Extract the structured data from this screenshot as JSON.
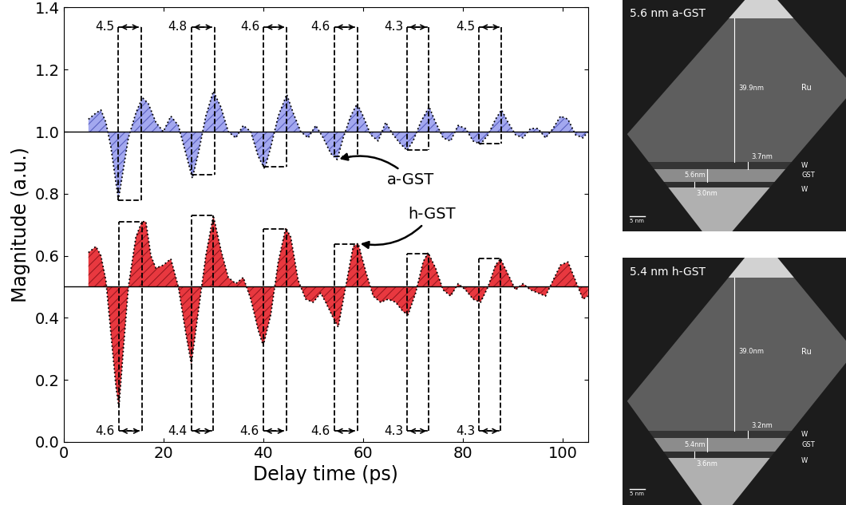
{
  "chart_data": {
    "type": "area",
    "x_label": "Delay time (ps)",
    "y_label": "Magnitude (a.u.)",
    "xlim": [
      0,
      105
    ],
    "xticks": [
      0,
      20,
      40,
      60,
      80,
      100
    ],
    "ylim": [
      0,
      1.4
    ],
    "yticks": [
      {
        "value": 0,
        "label": "0.0"
      },
      {
        "value": 0.2,
        "label": "0.2"
      },
      {
        "value": 0.4,
        "label": "0.4"
      },
      {
        "value": 0.6,
        "label": "0.6"
      },
      {
        "value": 0.8,
        "label": "0.8"
      },
      {
        "value": 1.0,
        "label": "1.0"
      },
      {
        "value": 1.2,
        "label": "1.2"
      },
      {
        "value": 1.4,
        "label": "1.4"
      }
    ],
    "line_style": "dotted",
    "series": [
      {
        "name": "a-GST",
        "color": "#a3a8ef",
        "baseline": 1.0,
        "x": [
          5,
          6.5,
          7.5,
          8.5,
          9.5,
          11,
          12,
          13,
          14.5,
          15.8,
          17,
          18.5,
          20,
          21.5,
          23,
          24.5,
          25.8,
          27,
          28.5,
          30,
          31.5,
          33,
          34.5,
          36,
          37.5,
          39,
          40.3,
          41.5,
          43,
          44.7,
          46,
          47.5,
          49,
          50.5,
          52,
          53.5,
          54.8,
          56,
          57.5,
          58.8,
          60,
          61.5,
          63,
          64.5,
          66,
          67.5,
          68.8,
          70,
          71.5,
          73.2,
          74.5,
          76,
          77.5,
          79,
          80.5,
          82,
          83.5,
          85,
          86.5,
          87.7,
          89,
          90.5,
          92,
          93.5,
          95,
          96.5,
          98,
          99.5,
          101,
          102.5,
          104,
          105
        ],
        "values": [
          1.04,
          1.06,
          1.07,
          1.03,
          0.95,
          0.78,
          0.88,
          0.98,
          1.06,
          1.11,
          1.09,
          1.03,
          1.0,
          1.05,
          1.02,
          0.93,
          0.85,
          0.93,
          1.05,
          1.13,
          1.08,
          1.0,
          0.98,
          1.02,
          1.0,
          0.92,
          0.88,
          0.95,
          1.05,
          1.12,
          1.06,
          1.0,
          0.98,
          1.02,
          0.98,
          0.93,
          0.91,
          0.98,
          1.05,
          1.09,
          1.05,
          0.99,
          0.97,
          1.03,
          0.99,
          0.96,
          0.94,
          0.97,
          1.03,
          1.08,
          1.03,
          0.98,
          0.97,
          1.02,
          1.01,
          0.97,
          0.96,
          0.99,
          1.04,
          1.07,
          1.03,
          0.99,
          0.98,
          1.01,
          1.01,
          0.98,
          1.01,
          1.05,
          1.04,
          0.99,
          0.98,
          1.0
        ],
        "periods": [
          {
            "start": 11,
            "end": 15.5,
            "value": 4.5
          },
          {
            "start": 25.6,
            "end": 30.2,
            "value": 4.8
          },
          {
            "start": 40.1,
            "end": 44.7,
            "value": 4.6
          },
          {
            "start": 54.2,
            "end": 58.8,
            "value": 4.6
          },
          {
            "start": 68.8,
            "end": 73.1,
            "value": 4.3
          },
          {
            "start": 83.2,
            "end": 87.7,
            "value": 4.5
          }
        ]
      },
      {
        "name": "h-GST",
        "color": "#e8383f",
        "baseline": 0.5,
        "x": [
          5,
          6.5,
          7.5,
          8.5,
          9.5,
          10.5,
          11.1,
          12,
          13,
          14.5,
          15.7,
          16.5,
          17.5,
          18.5,
          20,
          21.5,
          23,
          24.5,
          25.6,
          27,
          28.5,
          30,
          31.5,
          33,
          34.5,
          36,
          37.5,
          39,
          40,
          41.5,
          43,
          44.5,
          45.5,
          47,
          48.5,
          50,
          51.5,
          52.5,
          54,
          55,
          56.5,
          58,
          59,
          60.5,
          62,
          63.5,
          65,
          66.5,
          68,
          69,
          70.5,
          72,
          73,
          74.5,
          76,
          77.5,
          79,
          80.5,
          82,
          83.5,
          85,
          86.5,
          87.5,
          89,
          90.5,
          92,
          93.5,
          95,
          96.5,
          98,
          99.5,
          101,
          102.5,
          104,
          105
        ],
        "values": [
          0.61,
          0.63,
          0.6,
          0.52,
          0.35,
          0.18,
          0.11,
          0.3,
          0.5,
          0.66,
          0.71,
          0.71,
          0.6,
          0.56,
          0.57,
          0.59,
          0.5,
          0.35,
          0.25,
          0.42,
          0.6,
          0.73,
          0.62,
          0.53,
          0.51,
          0.53,
          0.46,
          0.36,
          0.31,
          0.41,
          0.58,
          0.69,
          0.66,
          0.52,
          0.46,
          0.45,
          0.48,
          0.45,
          0.4,
          0.37,
          0.5,
          0.63,
          0.64,
          0.55,
          0.47,
          0.45,
          0.46,
          0.45,
          0.42,
          0.41,
          0.48,
          0.58,
          0.61,
          0.56,
          0.49,
          0.47,
          0.51,
          0.49,
          0.46,
          0.45,
          0.5,
          0.57,
          0.59,
          0.54,
          0.49,
          0.51,
          0.49,
          0.48,
          0.47,
          0.52,
          0.57,
          0.58,
          0.52,
          0.46,
          0.47
        ],
        "periods": [
          {
            "start": 11.1,
            "end": 15.7,
            "value": 4.6
          },
          {
            "start": 25.6,
            "end": 30,
            "value": 4.4
          },
          {
            "start": 40,
            "end": 44.6,
            "value": 4.6
          },
          {
            "start": 54.2,
            "end": 58.8,
            "value": 4.6
          },
          {
            "start": 68.8,
            "end": 73.1,
            "value": 4.3
          },
          {
            "start": 83.2,
            "end": 87.5,
            "value": 4.3
          }
        ]
      }
    ]
  },
  "images": [
    {
      "title": "5.6 nm a-GST",
      "scale_bar": "5 nm",
      "layers": [
        {
          "name": "Ru",
          "thickness": "39.9nm"
        },
        {
          "name": "W",
          "thickness": "3.7nm"
        },
        {
          "name": "GST",
          "thickness": "5.6nm"
        },
        {
          "name": "W",
          "thickness": "3.0nm"
        }
      ]
    },
    {
      "title": "5.4 nm h-GST",
      "scale_bar": "5 nm",
      "layers": [
        {
          "name": "Ru",
          "thickness": "39.0nm"
        },
        {
          "name": "W",
          "thickness": "3.2nm"
        },
        {
          "name": "GST",
          "thickness": "5.4nm"
        },
        {
          "name": "W",
          "thickness": "3.6nm"
        }
      ]
    }
  ]
}
